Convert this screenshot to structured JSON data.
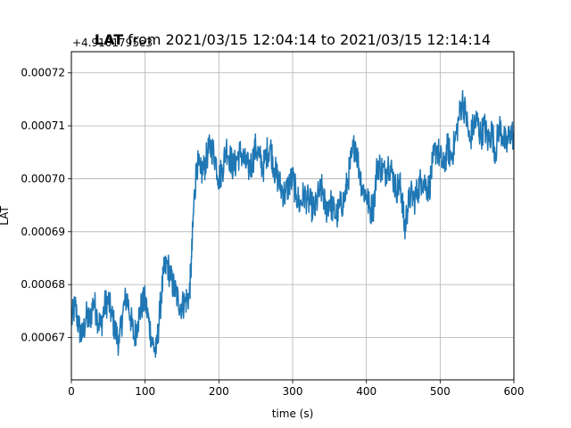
{
  "chart_data": {
    "type": "line",
    "title": "LAT from 2021/03/15 12:04:14 to 2021/03/15 12:14:14",
    "title_bold_part": "LAT",
    "title_rest": " from 2021/03/15 12:04:14 to 2021/03/15 12:14:14",
    "xlabel": "time (s)",
    "ylabel": "LAT",
    "offset_label": "+4.9101795e3",
    "xlim": [
      0,
      600
    ],
    "ylim": [
      0.000662,
      0.000724
    ],
    "xticks": [
      0,
      100,
      200,
      300,
      400,
      500,
      600
    ],
    "xtick_labels": [
      "0",
      "100",
      "200",
      "300",
      "400",
      "500",
      "600"
    ],
    "yticks": [
      0.00067,
      0.00068,
      0.00069,
      0.0007,
      0.00071,
      0.00072
    ],
    "ytick_labels": [
      "0.00067",
      "0.00068",
      "0.00069",
      "0.00070",
      "0.00071",
      "0.00072"
    ],
    "grid": true,
    "line_color": "#1f77b4",
    "series": [
      {
        "x": [
          0,
          5,
          10,
          15,
          20,
          25,
          30,
          35,
          40,
          45,
          50,
          55,
          60,
          65,
          70,
          75,
          80,
          85,
          90,
          95,
          100,
          105,
          110,
          115,
          120,
          125,
          130,
          135,
          140,
          145,
          150,
          155,
          160,
          163,
          166,
          170,
          175,
          180,
          185,
          190,
          195,
          200,
          205,
          210,
          215,
          220,
          225,
          230,
          235,
          240,
          245,
          250,
          255,
          260,
          265,
          270,
          275,
          280,
          285,
          290,
          295,
          300,
          305,
          310,
          315,
          320,
          325,
          330,
          335,
          340,
          345,
          350,
          355,
          360,
          365,
          370,
          375,
          380,
          385,
          390,
          395,
          400,
          405,
          410,
          415,
          420,
          425,
          430,
          435,
          440,
          445,
          448,
          452,
          455,
          460,
          465,
          470,
          475,
          480,
          485,
          490,
          495,
          500,
          505,
          510,
          515,
          520,
          525,
          530,
          535,
          540,
          545,
          550,
          555,
          560,
          565,
          570,
          575,
          580,
          585,
          590,
          595,
          600
        ],
        "y": [
          0.000673,
          0.000676,
          0.000672,
          0.00067,
          0.000674,
          0.000673,
          0.000677,
          0.000674,
          0.000672,
          0.000676,
          0.000677,
          0.000674,
          0.000671,
          0.000669,
          0.000675,
          0.000678,
          0.000674,
          0.00067,
          0.000673,
          0.000676,
          0.000677,
          0.000673,
          0.000669,
          0.000667,
          0.000675,
          0.000682,
          0.000684,
          0.000681,
          0.000679,
          0.000677,
          0.000676,
          0.000677,
          0.000678,
          0.000685,
          0.000695,
          0.000703,
          0.000701,
          0.000702,
          0.000705,
          0.000706,
          0.000704,
          0.0007,
          0.000702,
          0.000706,
          0.000704,
          0.000702,
          0.000704,
          0.000705,
          0.000703,
          0.000702,
          0.000703,
          0.000706,
          0.000704,
          0.000702,
          0.000705,
          0.000706,
          0.000702,
          0.0007,
          0.000698,
          0.000697,
          0.000699,
          0.0007,
          0.000697,
          0.000695,
          0.000697,
          0.000696,
          0.000695,
          0.000694,
          0.000697,
          0.000698,
          0.000694,
          0.000696,
          0.000694,
          0.000693,
          0.000695,
          0.000696,
          0.0007,
          0.000704,
          0.000707,
          0.000702,
          0.000698,
          0.000697,
          0.000694,
          0.000695,
          0.000703,
          0.000702,
          0.000701,
          0.000703,
          0.000701,
          0.000698,
          0.000699,
          0.000697,
          0.00069,
          0.000694,
          0.000697,
          0.000696,
          0.000698,
          0.0007,
          0.000699,
          0.000698,
          0.000703,
          0.000706,
          0.000704,
          0.000702,
          0.000706,
          0.000704,
          0.000707,
          0.000711,
          0.000715,
          0.000712,
          0.000707,
          0.00071,
          0.000711,
          0.000708,
          0.00071,
          0.000707,
          0.000709,
          0.000705,
          0.00071,
          0.000708,
          0.000706,
          0.000709,
          0.000708
        ]
      }
    ]
  }
}
